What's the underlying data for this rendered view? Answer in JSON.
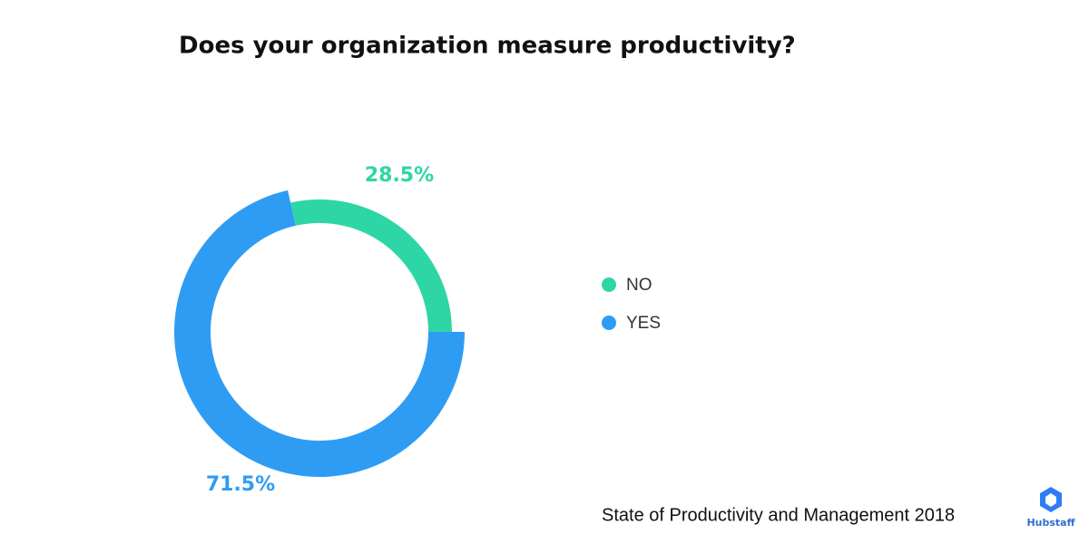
{
  "chart_data": {
    "type": "pie",
    "donut": true,
    "title": "Does your organization measure productivity?",
    "categories": [
      "NO",
      "YES"
    ],
    "values": [
      28.5,
      71.5
    ],
    "value_labels": [
      "28.5%",
      "71.5%"
    ],
    "colors": [
      "#2ed6a5",
      "#2f9cf4"
    ],
    "legend": "right",
    "source": "State of Productivity and Management 2018",
    "logo_text": "Hubstaff"
  }
}
